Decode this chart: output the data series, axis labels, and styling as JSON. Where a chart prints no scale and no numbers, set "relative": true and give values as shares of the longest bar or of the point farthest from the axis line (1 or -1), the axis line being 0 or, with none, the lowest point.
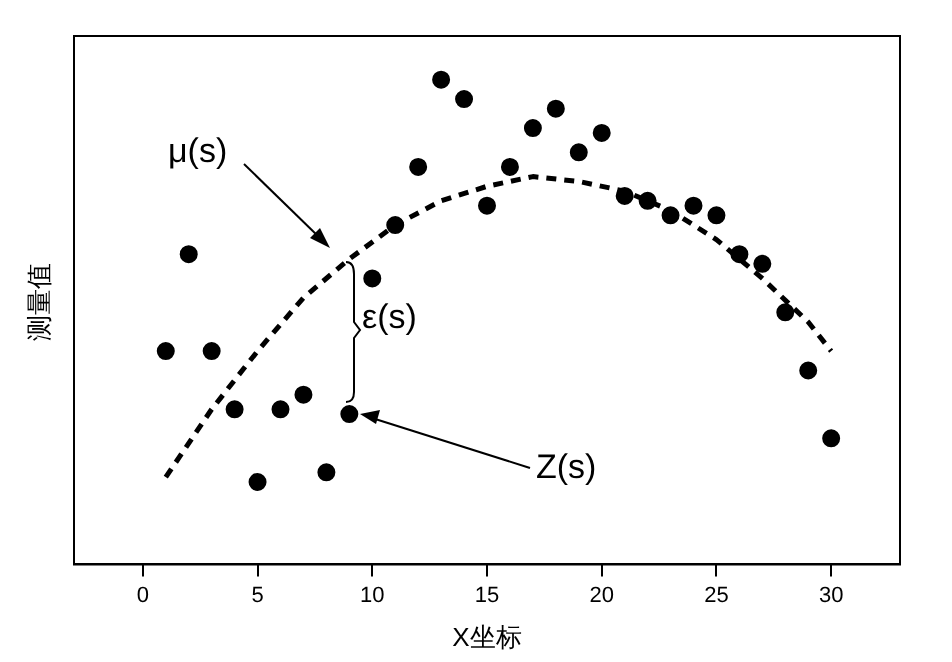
{
  "chart_data": {
    "type": "scatter",
    "xlabel": "X坐标",
    "ylabel": "测量值",
    "relative": true,
    "xlim": [
      -3,
      33
    ],
    "xticks": [
      0,
      5,
      10,
      15,
      20,
      25,
      30
    ],
    "grid": false,
    "legend": false,
    "marker": "circle",
    "x": [
      1,
      2,
      3,
      4,
      5,
      6,
      7,
      8,
      9,
      10,
      11,
      12,
      13,
      14,
      15,
      16,
      17,
      18,
      19,
      20,
      21,
      22,
      23,
      24,
      25,
      26,
      27,
      28,
      29,
      30
    ],
    "series": [
      {
        "color": "#000000",
        "values": [
          0.44,
          0.64,
          0.44,
          0.32,
          0.17,
          0.32,
          0.35,
          0.19,
          0.31,
          0.59,
          0.7,
          0.82,
          1,
          0.96,
          0.74,
          0.82,
          0.9,
          0.94,
          0.85,
          0.89,
          0.76,
          0.75,
          0.72,
          0.74,
          0.72,
          0.64,
          0.62,
          0.52,
          0.4,
          0.26
        ]
      },
      {
        "type": "line",
        "color": "#000000",
        "marker": "none",
        "line_style": "dashed",
        "x": [
          1,
          3,
          5,
          7,
          9,
          11,
          13,
          15,
          17,
          19,
          21,
          23,
          25,
          27,
          29,
          30
        ],
        "values": [
          0.18,
          0.32,
          0.44,
          0.55,
          0.63,
          0.7,
          0.75,
          0.78,
          0.8,
          0.79,
          0.77,
          0.73,
          0.67,
          0.59,
          0.5,
          0.44
        ]
      }
    ],
    "annotations": [
      "μ(s)",
      "ε(s)",
      "Z(s)"
    ]
  }
}
